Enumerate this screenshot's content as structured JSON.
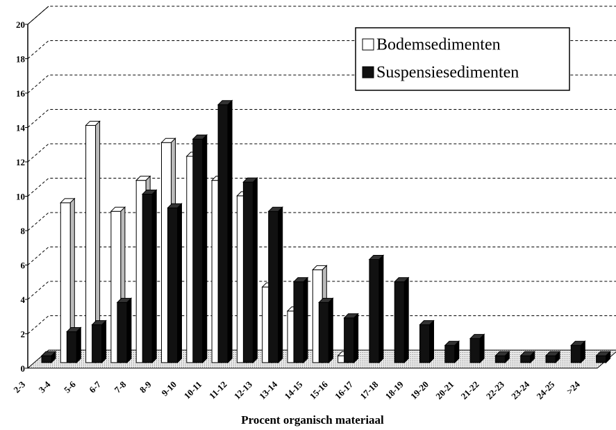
{
  "chart_data": {
    "type": "bar3d",
    "x_label": "Procent organisch materiaal",
    "categories": [
      "2-3",
      "3-4",
      "5-6",
      "6-7",
      "7-8",
      "8-9",
      "9-10",
      "10-11",
      "11-12",
      "12-13",
      "13-14",
      "14-15",
      "15-16",
      "16-17",
      "17-18",
      "18-19",
      "19-20",
      "20-21",
      "21-22",
      "22-23",
      "23-24",
      "24-25",
      ">24"
    ],
    "series": [
      {
        "name": "Bodemsedimenten",
        "color": "#ffffff",
        "values": [
          0,
          9.3,
          13.8,
          8.8,
          10.6,
          12.8,
          12,
          10.6,
          9.7,
          4.4,
          3,
          5.4,
          0.4,
          0,
          0,
          0,
          0,
          0,
          0,
          0,
          0,
          0,
          0
        ]
      },
      {
        "name": "Suspensiesedimenten",
        "color": "#111111",
        "values": [
          0.4,
          1.8,
          2.2,
          3.5,
          9.8,
          9,
          13,
          15,
          10.5,
          8.8,
          4.7,
          3.5,
          2.6,
          6,
          4.7,
          2.2,
          1,
          1.4,
          0.4,
          0.4,
          0.4,
          1,
          0.4
        ]
      }
    ],
    "ylim": [
      0,
      20
    ],
    "yticks": [
      0,
      2,
      4,
      6,
      8,
      10,
      12,
      14,
      16,
      18,
      20
    ],
    "grid": true,
    "legend": "top-right"
  }
}
